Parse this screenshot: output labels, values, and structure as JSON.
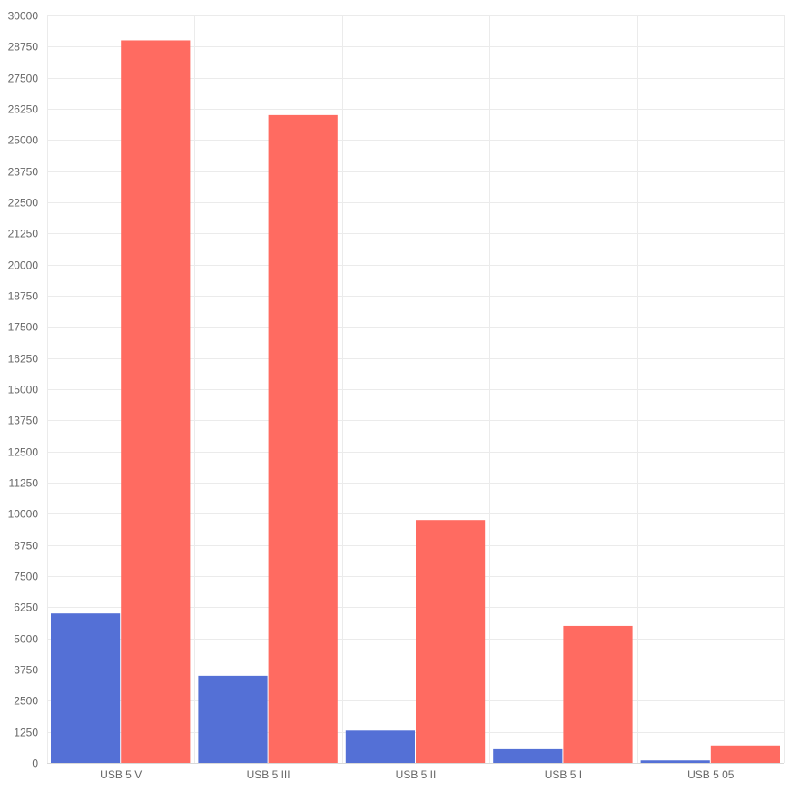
{
  "chart_data": {
    "type": "bar",
    "categories": [
      "USB 5 V",
      "USB 5 III",
      "USB 5 II",
      "USB 5 I",
      "USB 5 05"
    ],
    "series": [
      {
        "values": [
          6000,
          3500,
          1300,
          550,
          100
        ],
        "color": "#5470d6"
      },
      {
        "values": [
          29000,
          26000,
          9750,
          5500,
          700
        ],
        "color": "#ff6b61"
      }
    ],
    "y_ticks": [
      0,
      1250,
      2500,
      3750,
      5000,
      6250,
      7500,
      8750,
      10000,
      11250,
      12500,
      13750,
      15000,
      16250,
      17500,
      18750,
      20000,
      21250,
      22500,
      23750,
      25000,
      26250,
      27500,
      28750,
      30000
    ],
    "ylim": [
      0,
      30000
    ],
    "grid": true,
    "legend": "none",
    "title": "",
    "xlabel": "",
    "ylabel": ""
  }
}
